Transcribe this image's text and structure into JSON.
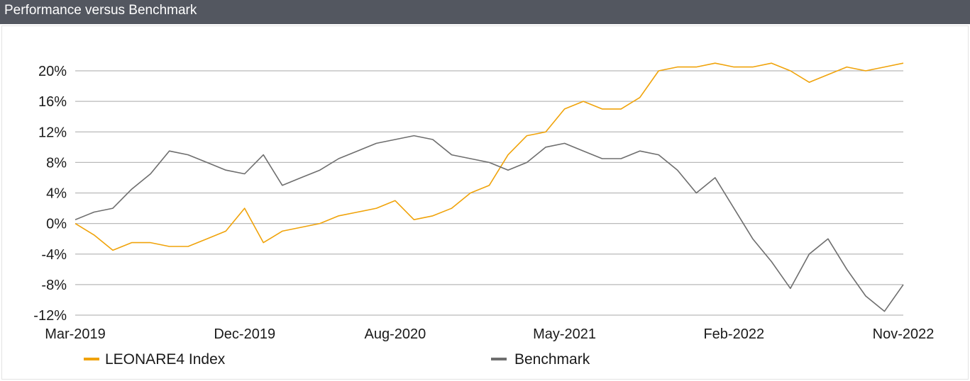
{
  "title": "Performance versus Benchmark",
  "chart_data": {
    "type": "line",
    "title": "Performance versus Benchmark",
    "xlabel": "",
    "ylabel": "",
    "x_ticks": [
      "Mar-2019",
      "Dec-2019",
      "Aug-2020",
      "May-2021",
      "Feb-2022",
      "Nov-2022"
    ],
    "y_ticks": [
      "20%",
      "16%",
      "12%",
      "8%",
      "4%",
      "0%",
      "-4%",
      "-8%",
      "-12%"
    ],
    "ylim": [
      -12,
      20
    ],
    "xlim": [
      "2019-03",
      "2022-11"
    ],
    "grid": "horizontal",
    "legend_position": "bottom",
    "x": [
      "2019-03",
      "2019-04",
      "2019-05",
      "2019-06",
      "2019-07",
      "2019-08",
      "2019-09",
      "2019-10",
      "2019-11",
      "2019-12",
      "2020-01",
      "2020-02",
      "2020-03",
      "2020-04",
      "2020-05",
      "2020-06",
      "2020-07",
      "2020-08",
      "2020-09",
      "2020-10",
      "2020-11",
      "2020-12",
      "2021-01",
      "2021-02",
      "2021-03",
      "2021-04",
      "2021-05",
      "2021-06",
      "2021-07",
      "2021-08",
      "2021-09",
      "2021-10",
      "2021-11",
      "2021-12",
      "2022-01",
      "2022-02",
      "2022-03",
      "2022-04",
      "2022-05",
      "2022-06",
      "2022-07",
      "2022-08",
      "2022-09",
      "2022-10",
      "2022-11"
    ],
    "series": [
      {
        "name": "LEONARE4 Index",
        "color": "#f0a30a",
        "values": [
          0,
          -1.5,
          -3.5,
          -2.5,
          -2.5,
          -3,
          -3,
          -2,
          -1,
          2,
          -2.5,
          -1,
          -0.5,
          0,
          1,
          1.5,
          2,
          3,
          0.5,
          1,
          2,
          4,
          5,
          9,
          11.5,
          12,
          15,
          16,
          15,
          15,
          16.5,
          20,
          20.5,
          20.5,
          21,
          20.5,
          20.5,
          21,
          20,
          18.5,
          19.5,
          20.5,
          20,
          20.5,
          21
        ]
      },
      {
        "name": "Benchmark",
        "color": "#6e6e6e",
        "values": [
          0.5,
          1.5,
          2,
          4.5,
          6.5,
          9.5,
          9,
          8,
          7,
          6.5,
          9,
          5,
          6,
          7,
          8.5,
          9.5,
          10.5,
          11,
          11.5,
          11,
          9,
          8.5,
          8,
          7,
          8,
          10,
          10.5,
          9.5,
          8.5,
          8.5,
          9.5,
          9,
          7,
          4,
          6,
          2,
          -2,
          -5,
          -8.5,
          -4,
          -2,
          -6,
          -9.5,
          -11.5,
          -8
        ]
      }
    ]
  }
}
